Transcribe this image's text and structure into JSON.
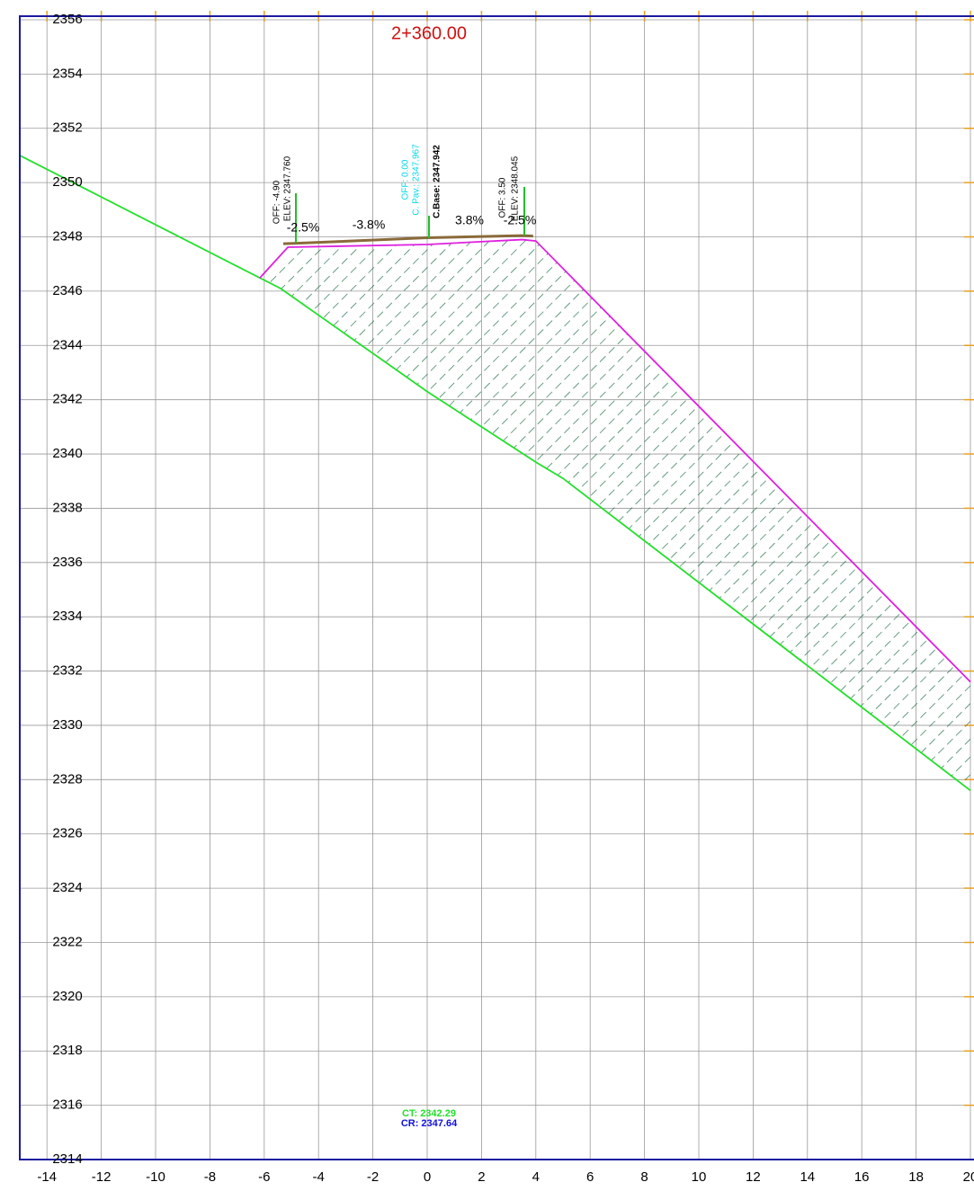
{
  "chart_data": {
    "type": "line",
    "title": "2+360.00",
    "xlim": [
      -15,
      20
    ],
    "ylim": [
      2314,
      2356
    ],
    "xticks": [
      -14,
      -12,
      -10,
      -8,
      -6,
      -4,
      -2,
      0,
      2,
      4,
      6,
      8,
      10,
      12,
      14,
      16,
      18,
      20
    ],
    "yticks": [
      2314,
      2316,
      2318,
      2320,
      2322,
      2324,
      2326,
      2328,
      2330,
      2332,
      2334,
      2336,
      2338,
      2340,
      2342,
      2344,
      2346,
      2348,
      2350,
      2352,
      2354,
      2356
    ],
    "grid": true,
    "series": [
      {
        "color": "#22e02a",
        "x": [
          -15,
          -5.4,
          0,
          4.0,
          5.0,
          20
        ],
        "values": [
          2351.0,
          2346.1,
          2342.3,
          2339.7,
          2339.1,
          2327.6
        ]
      },
      {
        "color": "#e020e0",
        "x": [
          -6.16,
          -5.13,
          0,
          3.5,
          4.0,
          20
        ],
        "values": [
          2346.49,
          2347.62,
          2347.72,
          2347.9,
          2347.85,
          2331.6
        ]
      },
      {
        "color": "#8a6a3a",
        "x": [
          -5.3,
          -4.9,
          0,
          3.5,
          3.9
        ],
        "values": [
          2347.75,
          2347.76,
          2347.967,
          2348.045,
          2348.03
        ]
      }
    ],
    "annotations": [
      {
        "text": "OFF: -4.90",
        "color": "#000000"
      },
      {
        "text": "ELEV: 2347.760",
        "color": "#000000"
      },
      {
        "text": "-2.5%",
        "color": "#000000"
      },
      {
        "text": "-3.8%",
        "color": "#000000"
      },
      {
        "text": "OFF: 0.00",
        "color": "#00d8e8"
      },
      {
        "text": "C. Pav.: 2347.967",
        "color": "#00d8e8"
      },
      {
        "text": "C.Base: 2347.942",
        "color": "#000000"
      },
      {
        "text": "3.8%",
        "color": "#000000"
      },
      {
        "text": "OFF: 3.50",
        "color": "#000000"
      },
      {
        "text": "ELEV: 2348.045",
        "color": "#000000"
      },
      {
        "text": "-2.5%",
        "color": "#000000"
      },
      {
        "text": "CT: 2342.29",
        "color": "#22e02a"
      },
      {
        "text": "CR: 2347.64",
        "color": "#1010e0"
      }
    ]
  }
}
